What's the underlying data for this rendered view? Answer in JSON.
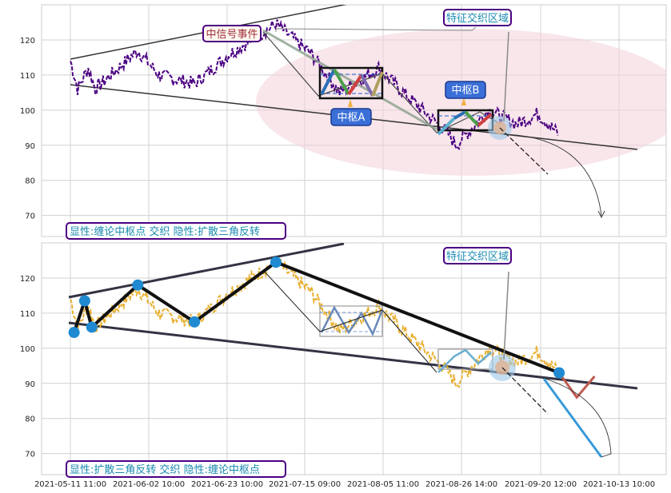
{
  "chart_data": [
    {
      "type": "line",
      "panel": "top",
      "ylim": [
        64,
        130
      ],
      "yticks": [
        70,
        80,
        90,
        100,
        110,
        120
      ],
      "grid": true,
      "colors": {
        "price": "#4b0082",
        "pivot_box": "#111111",
        "ellipse": "#f4d6dd",
        "label_border": "#4b0082"
      },
      "annotations": {
        "signal_event": "中信号事件",
        "zone_b": "中枢B",
        "zone_a": "中枢A",
        "intersection": "特征交织区域",
        "footer": "显性:缠论中枢点 交织 隐性:扩散三角反转"
      },
      "pivot_a": {
        "top": 112,
        "bottom": 103.5
      },
      "pivot_b": {
        "top": 100,
        "bottom": 94.5
      }
    },
    {
      "type": "line",
      "panel": "bottom",
      "ylim": [
        64,
        130
      ],
      "yticks": [
        70,
        80,
        90,
        100,
        110,
        120
      ],
      "grid": true,
      "colors": {
        "price": "#e8b030",
        "pivot_point": "#1f8ad2",
        "zigzag": "#111111",
        "trend_line": "#333344"
      },
      "annotations": {
        "intersection": "特征交织区域",
        "footer": "显性:扩散三角反转 交织 隐性:缠论中枢点"
      },
      "pivot_points": [
        {
          "date": "2021-05-12",
          "value": 104.5
        },
        {
          "date": "2021-05-15",
          "value": 113.5
        },
        {
          "date": "2021-05-17",
          "value": 106
        },
        {
          "date": "2021-05-30",
          "value": 118
        },
        {
          "date": "2021-06-15",
          "value": 107.5
        },
        {
          "date": "2021-07-08",
          "value": 124.5
        },
        {
          "date": "2021-09-26",
          "value": 93
        }
      ],
      "projection": [
        {
          "date": "2021-09-26",
          "value": 93
        },
        {
          "date": "2021-10-01",
          "value": 86
        },
        {
          "date": "2021-10-06",
          "value": 92
        },
        {
          "date": "2021-10-24",
          "value": 70
        }
      ]
    }
  ],
  "x_axis": {
    "tick_labels": [
      "2021-05-11 11:00",
      "2021-06-02 10:00",
      "2021-06-23 10:00",
      "2021-07-15 09:00",
      "2021-08-05 11:00",
      "2021-08-26 14:00",
      "2021-09-20 12:00",
      "2021-10-13 10:00"
    ]
  }
}
